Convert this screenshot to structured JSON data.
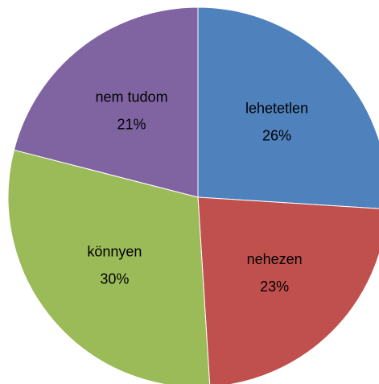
{
  "chart_data": {
    "type": "pie",
    "categories": [
      "lehetetlen",
      "nehezen",
      "könnyen",
      "nem tudom"
    ],
    "values": [
      26,
      23,
      30,
      21
    ],
    "value_labels": [
      "26%",
      "23%",
      "30%",
      "21%"
    ],
    "colors": [
      "#4f81bd",
      "#c0504d",
      "#9bbb59",
      "#8064a2"
    ]
  }
}
